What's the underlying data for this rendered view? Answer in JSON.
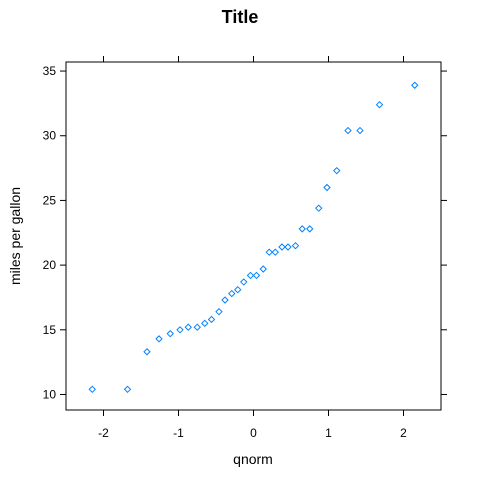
{
  "chart_data": {
    "type": "scatter",
    "title": "Title",
    "xlabel": "qnorm",
    "ylabel": "miles per gallon",
    "xlim": [
      -2.5,
      2.5
    ],
    "ylim": [
      8.8,
      35.7
    ],
    "x_ticks": [
      -2,
      -1,
      0,
      1,
      2
    ],
    "y_ticks": [
      10,
      15,
      20,
      25,
      30,
      35
    ],
    "grid": false,
    "marker": "diamond",
    "point_color": "#0080ff",
    "series": [
      {
        "x": [
          -2.15,
          -1.68,
          -1.42,
          -1.26,
          -1.11,
          -0.98,
          -0.87,
          -0.75,
          -0.65,
          -0.56,
          -0.46,
          -0.38,
          -0.29,
          -0.21,
          -0.13,
          -0.04,
          0.04,
          0.13,
          0.21,
          0.29,
          0.38,
          0.46,
          0.56,
          0.65,
          0.75,
          0.87,
          0.98,
          1.11,
          1.26,
          1.42,
          1.68,
          2.15
        ],
        "y": [
          10.4,
          10.4,
          13.3,
          14.3,
          14.7,
          15.0,
          15.2,
          15.2,
          15.5,
          15.8,
          16.4,
          17.3,
          17.8,
          18.1,
          18.7,
          19.2,
          19.2,
          19.7,
          21.0,
          21.0,
          21.4,
          21.4,
          21.5,
          22.8,
          22.8,
          24.4,
          26.0,
          27.3,
          30.4,
          30.4,
          32.4,
          33.9
        ]
      }
    ]
  }
}
